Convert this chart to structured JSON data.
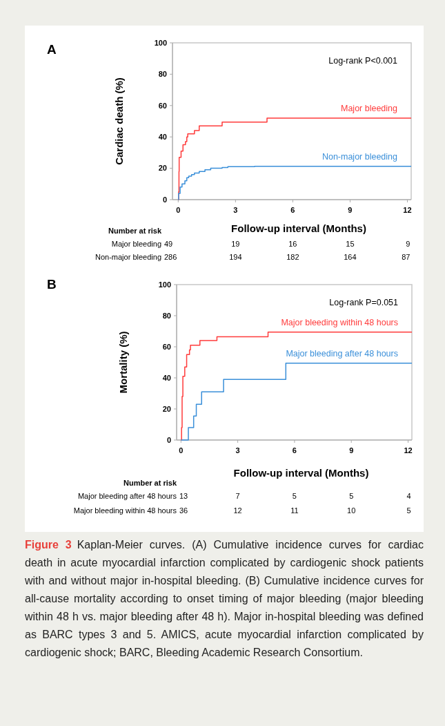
{
  "chart_data": [
    {
      "type": "step",
      "ylabel": "Cardiac death (%)",
      "xlabel": "Follow-up interval (Months)",
      "xlim": [
        -0.3,
        12.2
      ],
      "xticks": [
        0,
        3,
        6,
        9,
        12
      ],
      "ylim": [
        0,
        100
      ],
      "yticks": [
        0,
        20,
        40,
        60,
        80,
        100
      ],
      "series": [
        {
          "name": "Major bleeding",
          "color": "#ff3b3b",
          "x": [
            0,
            0.02,
            0.04,
            0.05,
            0.15,
            0.25,
            0.38,
            0.45,
            0.5,
            0.85,
            1.1,
            2.3,
            4.65,
            12.2
          ],
          "values": [
            0,
            5,
            18,
            27,
            31,
            35,
            37,
            40,
            42,
            44,
            47,
            49.5,
            52,
            52
          ]
        },
        {
          "name": "Non-major bleeding",
          "color": "#3a8fd9",
          "x": [
            0,
            0.02,
            0.1,
            0.2,
            0.35,
            0.45,
            0.55,
            0.7,
            0.85,
            1.1,
            1.4,
            1.7,
            2.3,
            2.6,
            4.0,
            12.2
          ],
          "values": [
            0,
            4,
            8,
            10,
            12,
            14,
            15,
            16,
            17,
            18,
            19,
            20,
            20.5,
            21,
            21.3,
            21.3
          ]
        }
      ],
      "annotations": [
        "A",
        "Log-rank P<0.001",
        "Number at risk",
        "Major bleeding",
        "49",
        "19",
        "16",
        "15",
        "9",
        "Non-major bleeding",
        "286",
        "194",
        "182",
        "164",
        "87"
      ]
    },
    {
      "type": "step",
      "ylabel": "Mortality (%)",
      "xlabel": "Follow-up interval (Months)",
      "xlim": [
        -0.23,
        12.2
      ],
      "xticks": [
        0,
        3,
        6,
        9,
        12
      ],
      "ylim": [
        0,
        100
      ],
      "yticks": [
        0,
        20,
        40,
        60,
        80,
        100
      ],
      "series": [
        {
          "name": "Major bleeding within 48 hours",
          "color": "#ff3b3b",
          "x": [
            0,
            0.03,
            0.06,
            0.1,
            0.2,
            0.3,
            0.45,
            0.5,
            1.0,
            1.9,
            4.6,
            12.2
          ],
          "values": [
            0,
            8,
            28,
            41,
            47,
            55,
            58,
            61,
            64,
            66.5,
            69.5,
            69.5
          ]
        },
        {
          "name": "Major bleeding after 48 hours",
          "color": "#3a8fd9",
          "x": [
            0,
            0.39,
            0.67,
            0.81,
            1.09,
            2.25,
            5.54,
            12.2
          ],
          "values": [
            0,
            8,
            15.5,
            23,
            31,
            39,
            49.5,
            49.5
          ]
        }
      ],
      "annotations": [
        "B",
        "Log-rank P=0.051",
        "Number at risk",
        "Major bleeding after 48 hours",
        "13",
        "7",
        "5",
        "5",
        "4",
        "Major bleeding within 48 hours",
        "36",
        "12",
        "11",
        "10",
        "5"
      ]
    },
    {
      "type": "other",
      "title": "Figure 3",
      "annotations": [
        "Kaplan-Meier curves. (A) Cumulative incidence curves for cardiac death in acute myocardial infarction complicated by cardiogenic shock patients with and without major in-hospital bleeding. (B) Cumulative incidence curves for all-cause mortality according to onset timing of major bleeding (major bleeding within 48 h vs. major bleeding after 48 h). Major in-hospital bleeding was defined as BARC types 3 and 5. AMICS, acute myocardial infarction complicated by cardiogenic shock; BARC, Bleeding Academic Research Consortium."
      ]
    }
  ]
}
